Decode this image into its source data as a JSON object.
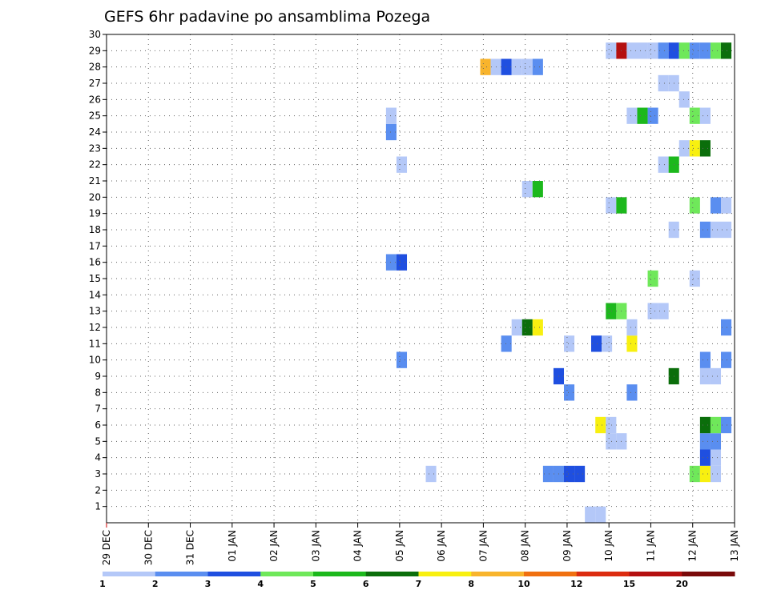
{
  "chart_data": {
    "type": "heatmap",
    "title": "GEFS 6hr padavine po ansamblima Pozega",
    "xlabel": "",
    "ylabel": "",
    "x_ticks": [
      "29 DEC",
      "30 DEC",
      "31 DEC",
      "01 JAN",
      "02 JAN",
      "03 JAN",
      "04 JAN",
      "05 JAN",
      "06 JAN",
      "07 JAN",
      "08 JAN",
      "09 JAN",
      "10 JAN",
      "11 JAN",
      "12 JAN",
      "13 JAN"
    ],
    "x_range_days": [
      0,
      15
    ],
    "y_range": [
      0,
      30
    ],
    "y_ticks": [
      1,
      2,
      3,
      4,
      5,
      6,
      7,
      8,
      9,
      10,
      11,
      12,
      13,
      14,
      15,
      16,
      17,
      18,
      19,
      20,
      21,
      22,
      23,
      24,
      25,
      26,
      27,
      28,
      29,
      30
    ],
    "grid": true,
    "legend_position": "bottom",
    "legend_levels": [
      "1",
      "2",
      "3",
      "4",
      "5",
      "6",
      "7",
      "8",
      "10",
      "12",
      "15",
      "20"
    ],
    "legend_colors": [
      "#b4c8f8",
      "#5a8ef0",
      "#1f4fe0",
      "#6fe85a",
      "#1cb81c",
      "#0b6e0b",
      "#f8f010",
      "#f8b42c",
      "#f07010",
      "#dc2c10",
      "#b41010",
      "#7a0a0a"
    ],
    "cells": [
      {
        "t": 11.55,
        "m": 0.5,
        "v": 1.5
      },
      {
        "t": 11.8,
        "m": 0.5,
        "v": 1.5
      },
      {
        "t": 7.75,
        "m": 3,
        "v": 1.5
      },
      {
        "t": 10.55,
        "m": 3,
        "v": 2.5
      },
      {
        "t": 10.8,
        "m": 3,
        "v": 2.5
      },
      {
        "t": 11.05,
        "m": 3,
        "v": 3.5
      },
      {
        "t": 11.3,
        "m": 3,
        "v": 3.5
      },
      {
        "t": 14.05,
        "m": 3,
        "v": 4.5
      },
      {
        "t": 14.3,
        "m": 3,
        "v": 7.5
      },
      {
        "t": 14.55,
        "m": 3,
        "v": 1.5
      },
      {
        "t": 14.3,
        "m": 4,
        "v": 3.5
      },
      {
        "t": 14.55,
        "m": 4,
        "v": 1.5
      },
      {
        "t": 12.05,
        "m": 5,
        "v": 1.5
      },
      {
        "t": 12.3,
        "m": 5,
        "v": 1.5
      },
      {
        "t": 14.3,
        "m": 5,
        "v": 2.5
      },
      {
        "t": 14.55,
        "m": 5,
        "v": 2.5
      },
      {
        "t": 11.8,
        "m": 6,
        "v": 7.5
      },
      {
        "t": 12.05,
        "m": 6,
        "v": 1.5
      },
      {
        "t": 14.3,
        "m": 6,
        "v": 6.5
      },
      {
        "t": 14.55,
        "m": 6,
        "v": 4.5
      },
      {
        "t": 14.8,
        "m": 6,
        "v": 2.5
      },
      {
        "t": 11.05,
        "m": 8,
        "v": 2.5
      },
      {
        "t": 12.55,
        "m": 8,
        "v": 2.5
      },
      {
        "t": 10.8,
        "m": 9,
        "v": 3.5
      },
      {
        "t": 13.55,
        "m": 9,
        "v": 6.5
      },
      {
        "t": 14.3,
        "m": 9,
        "v": 1.5
      },
      {
        "t": 14.55,
        "m": 9,
        "v": 1.5
      },
      {
        "t": 7.05,
        "m": 10,
        "v": 2.5
      },
      {
        "t": 14.3,
        "m": 10,
        "v": 2.5
      },
      {
        "t": 14.8,
        "m": 10,
        "v": 2.5
      },
      {
        "t": 9.55,
        "m": 11,
        "v": 2.5
      },
      {
        "t": 11.05,
        "m": 11,
        "v": 1.5
      },
      {
        "t": 11.7,
        "m": 11,
        "v": 3.5
      },
      {
        "t": 11.95,
        "m": 11,
        "v": 1.5
      },
      {
        "t": 12.55,
        "m": 11,
        "v": 7.5
      },
      {
        "t": 9.8,
        "m": 12,
        "v": 1.5
      },
      {
        "t": 10.05,
        "m": 12,
        "v": 6.5
      },
      {
        "t": 10.3,
        "m": 12,
        "v": 7.5
      },
      {
        "t": 12.55,
        "m": 12,
        "v": 1.5
      },
      {
        "t": 14.8,
        "m": 12,
        "v": 2.5
      },
      {
        "t": 12.05,
        "m": 13,
        "v": 5.5
      },
      {
        "t": 12.3,
        "m": 13,
        "v": 4.5
      },
      {
        "t": 13.05,
        "m": 13,
        "v": 1.5
      },
      {
        "t": 13.3,
        "m": 13,
        "v": 1.5
      },
      {
        "t": 13.05,
        "m": 15,
        "v": 4.5
      },
      {
        "t": 14.05,
        "m": 15,
        "v": 1.5
      },
      {
        "t": 6.8,
        "m": 16,
        "v": 2.5
      },
      {
        "t": 7.05,
        "m": 16,
        "v": 3.5
      },
      {
        "t": 13.55,
        "m": 18,
        "v": 1.5
      },
      {
        "t": 14.3,
        "m": 18,
        "v": 2.5
      },
      {
        "t": 14.55,
        "m": 18,
        "v": 1.5
      },
      {
        "t": 14.8,
        "m": 18,
        "v": 1.5
      },
      {
        "t": 12.05,
        "m": 19.5,
        "v": 1.5
      },
      {
        "t": 12.3,
        "m": 19.5,
        "v": 5.5
      },
      {
        "t": 14.05,
        "m": 19.5,
        "v": 4.5
      },
      {
        "t": 14.55,
        "m": 19.5,
        "v": 2.5
      },
      {
        "t": 14.8,
        "m": 19.5,
        "v": 1.5
      },
      {
        "t": 10.05,
        "m": 20.5,
        "v": 1.5
      },
      {
        "t": 10.3,
        "m": 20.5,
        "v": 5.5
      },
      {
        "t": 7.05,
        "m": 22,
        "v": 1.5
      },
      {
        "t": 13.3,
        "m": 22,
        "v": 1.5
      },
      {
        "t": 13.55,
        "m": 22,
        "v": 5.5
      },
      {
        "t": 13.8,
        "m": 23,
        "v": 1.5
      },
      {
        "t": 14.05,
        "m": 23,
        "v": 7.5
      },
      {
        "t": 14.3,
        "m": 23,
        "v": 6.5
      },
      {
        "t": 6.8,
        "m": 24,
        "v": 2.5
      },
      {
        "t": 6.8,
        "m": 25,
        "v": 1.5
      },
      {
        "t": 12.55,
        "m": 25,
        "v": 1.5
      },
      {
        "t": 12.8,
        "m": 25,
        "v": 5.5
      },
      {
        "t": 13.05,
        "m": 25,
        "v": 2.5
      },
      {
        "t": 14.05,
        "m": 25,
        "v": 4.5
      },
      {
        "t": 14.3,
        "m": 25,
        "v": 1.5
      },
      {
        "t": 13.8,
        "m": 26,
        "v": 1.5
      },
      {
        "t": 13.3,
        "m": 27,
        "v": 1.5
      },
      {
        "t": 13.55,
        "m": 27,
        "v": 1.5
      },
      {
        "t": 9.05,
        "m": 28,
        "v": 8.5
      },
      {
        "t": 9.3,
        "m": 28,
        "v": 1.5
      },
      {
        "t": 9.55,
        "m": 28,
        "v": 3.5
      },
      {
        "t": 9.8,
        "m": 28,
        "v": 1.5
      },
      {
        "t": 10.05,
        "m": 28,
        "v": 1.5
      },
      {
        "t": 10.3,
        "m": 28,
        "v": 2.5
      },
      {
        "t": 12.05,
        "m": 29,
        "v": 1.5
      },
      {
        "t": 12.3,
        "m": 29,
        "v": 17
      },
      {
        "t": 12.55,
        "m": 29,
        "v": 1.5
      },
      {
        "t": 12.8,
        "m": 29,
        "v": 1.5
      },
      {
        "t": 13.05,
        "m": 29,
        "v": 1.5
      },
      {
        "t": 13.3,
        "m": 29,
        "v": 2.5
      },
      {
        "t": 13.55,
        "m": 29,
        "v": 3.5
      },
      {
        "t": 13.8,
        "m": 29,
        "v": 4.5
      },
      {
        "t": 14.05,
        "m": 29,
        "v": 2.5
      },
      {
        "t": 14.3,
        "m": 29,
        "v": 2.5
      },
      {
        "t": 14.55,
        "m": 29,
        "v": 4.5
      },
      {
        "t": 14.8,
        "m": 29,
        "v": 6.5
      }
    ]
  }
}
